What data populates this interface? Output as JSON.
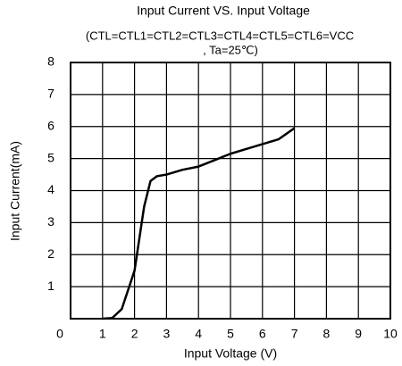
{
  "chart_data": {
    "type": "line",
    "title": "Input Current VS. Input Voltage",
    "subtitle": [
      "(CTL=CTL1=CTL2=CTL3=CTL4=CTL5=CTL6=VCC",
      ", Ta=25℃)"
    ],
    "xlabel": "Input Voltage (V)",
    "ylabel": "Input Current(mA)",
    "x": [
      1,
      1.3,
      1.6,
      2,
      2.3,
      2.5,
      2.7,
      3,
      3.5,
      4,
      4.5,
      5,
      5.5,
      6,
      6.5,
      7
    ],
    "series": [
      {
        "color": "#000000",
        "values": [
          0,
          0.02,
          0.3,
          1.5,
          3.5,
          4.3,
          4.45,
          4.5,
          4.65,
          4.75,
          4.95,
          5.15,
          5.3,
          5.45,
          5.6,
          5.95
        ]
      }
    ],
    "xlim": [
      0,
      10
    ],
    "xticks": [
      0,
      1,
      2,
      3,
      4,
      5,
      6,
      7,
      8,
      9,
      10
    ],
    "ylim": [
      0,
      8
    ],
    "yticks": [
      1,
      2,
      3,
      4,
      5,
      6,
      7,
      8
    ],
    "grid": true
  }
}
